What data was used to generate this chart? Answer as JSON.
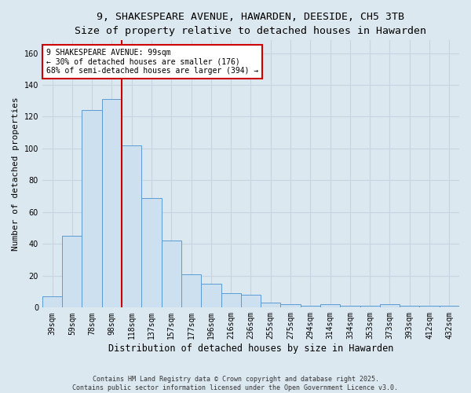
{
  "title_line1": "9, SHAKESPEARE AVENUE, HAWARDEN, DEESIDE, CH5 3TB",
  "title_line2": "Size of property relative to detached houses in Hawarden",
  "xlabel": "Distribution of detached houses by size in Hawarden",
  "ylabel": "Number of detached properties",
  "categories": [
    "39sqm",
    "59sqm",
    "78sqm",
    "98sqm",
    "118sqm",
    "137sqm",
    "157sqm",
    "177sqm",
    "196sqm",
    "216sqm",
    "236sqm",
    "255sqm",
    "275sqm",
    "294sqm",
    "314sqm",
    "334sqm",
    "353sqm",
    "373sqm",
    "393sqm",
    "412sqm",
    "432sqm"
  ],
  "bar_values": [
    7,
    45,
    124,
    131,
    102,
    69,
    42,
    21,
    15,
    9,
    8,
    3,
    2,
    1,
    2,
    1,
    1,
    2,
    1,
    1,
    1
  ],
  "bar_color": "#cce0f0",
  "bar_edge_color": "#5b9bd5",
  "redline_x": 3.5,
  "annotation_text": "9 SHAKESPEARE AVENUE: 99sqm\n← 30% of detached houses are smaller (176)\n68% of semi-detached houses are larger (394) →",
  "annotation_box_color": "#ffffff",
  "annotation_box_edge_color": "#cc0000",
  "annotation_text_color": "#000000",
  "redline_color": "#cc0000",
  "ylim": [
    0,
    168
  ],
  "yticks": [
    0,
    20,
    40,
    60,
    80,
    100,
    120,
    140,
    160
  ],
  "grid_color": "#c8d4e0",
  "bg_color": "#dce8f0",
  "footer_text": "Contains HM Land Registry data © Crown copyright and database right 2025.\nContains public sector information licensed under the Open Government Licence v3.0.",
  "title_fontsize": 9.5,
  "subtitle_fontsize": 8.5,
  "ylabel_fontsize": 8,
  "xlabel_fontsize": 8.5,
  "tick_fontsize": 7,
  "annotation_fontsize": 7,
  "footer_fontsize": 6
}
